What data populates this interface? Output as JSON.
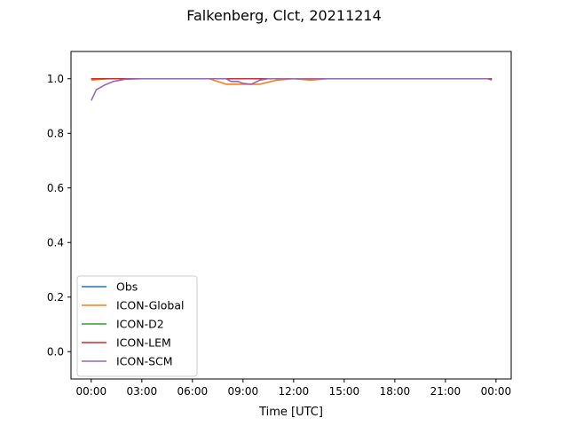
{
  "chart_data": {
    "type": "line",
    "title": "Falkenberg, Clct, 20211214",
    "xlabel": "Time [UTC]",
    "ylabel": "",
    "xlim": [
      -1.2,
      24.9
    ],
    "ylim": [
      -0.1,
      1.1
    ],
    "x_ticks": [
      {
        "value": 0,
        "label": "00:00"
      },
      {
        "value": 3,
        "label": "03:00"
      },
      {
        "value": 6,
        "label": "06:00"
      },
      {
        "value": 9,
        "label": "09:00"
      },
      {
        "value": 12,
        "label": "12:00"
      },
      {
        "value": 15,
        "label": "15:00"
      },
      {
        "value": 18,
        "label": "18:00"
      },
      {
        "value": 21,
        "label": "21:00"
      },
      {
        "value": 24,
        "label": "00:00"
      }
    ],
    "y_ticks": [
      {
        "value": 0.0,
        "label": "0.0"
      },
      {
        "value": 0.2,
        "label": "0.2"
      },
      {
        "value": 0.4,
        "label": "0.4"
      },
      {
        "value": 0.6,
        "label": "0.6"
      },
      {
        "value": 0.8,
        "label": "0.8"
      },
      {
        "value": 1.0,
        "label": "1.0"
      }
    ],
    "legend_position": "lower-left",
    "series": [
      {
        "name": "Obs",
        "color": "#1f77b4",
        "points": [
          [
            0,
            1.0
          ],
          [
            23.75,
            1.0
          ]
        ]
      },
      {
        "name": "ICON-Global",
        "color": "#ff7f0e",
        "points": [
          [
            0,
            0.995
          ],
          [
            1,
            1.0
          ],
          [
            7,
            1.0
          ],
          [
            8,
            0.98
          ],
          [
            10,
            0.98
          ],
          [
            11,
            0.995
          ],
          [
            12,
            1.0
          ],
          [
            13,
            0.995
          ],
          [
            14,
            1.0
          ],
          [
            23.75,
            1.0
          ]
        ]
      },
      {
        "name": "ICON-D2",
        "color": "#2ca02c",
        "points": [
          [
            0,
            1.0
          ],
          [
            23.75,
            1.0
          ]
        ]
      },
      {
        "name": "ICON-LEM",
        "color": "#d62728",
        "points": [
          [
            0,
            1.0
          ],
          [
            23.75,
            1.0
          ]
        ]
      },
      {
        "name": "ICON-SCM",
        "color": "#9467bd",
        "points": [
          [
            0,
            0.92
          ],
          [
            0.3,
            0.96
          ],
          [
            0.8,
            0.977
          ],
          [
            1.3,
            0.99
          ],
          [
            2,
            0.998
          ],
          [
            3,
            1.0
          ],
          [
            8,
            1.0
          ],
          [
            8.3,
            0.99
          ],
          [
            8.7,
            0.99
          ],
          [
            9,
            0.983
          ],
          [
            9.5,
            0.98
          ],
          [
            10,
            0.995
          ],
          [
            10.5,
            1.0
          ],
          [
            23.5,
            1.0
          ],
          [
            23.75,
            0.995
          ]
        ]
      }
    ]
  }
}
